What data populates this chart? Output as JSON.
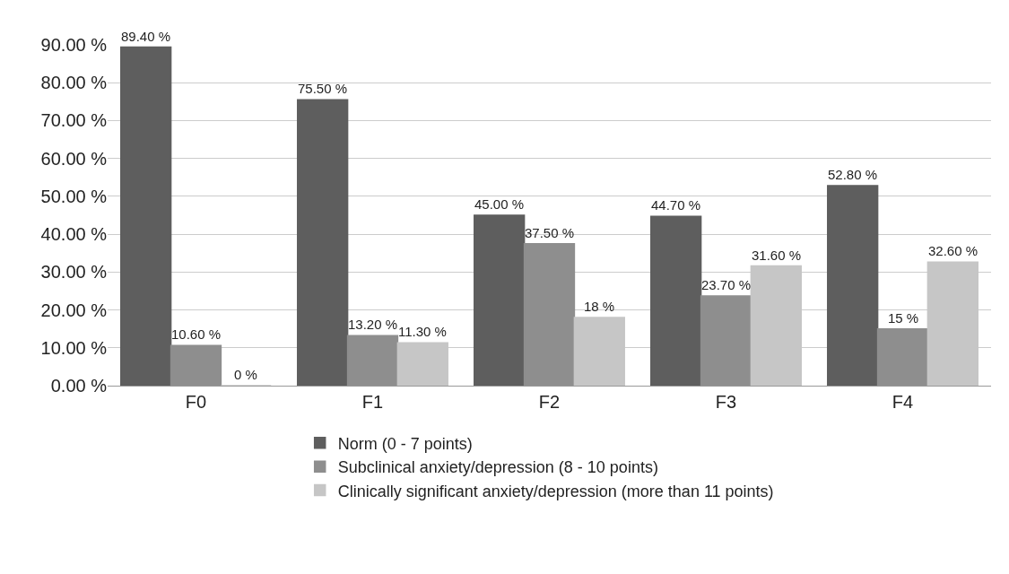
{
  "chart_data": {
    "type": "bar",
    "categories": [
      "F0",
      "F1",
      "F2",
      "F3",
      "F4"
    ],
    "series": [
      {
        "name": "Norm (0 - 7 points)",
        "color": "#5e5e5e",
        "values": [
          89.4,
          75.5,
          45.0,
          44.7,
          52.8
        ],
        "value_labels": [
          "89.40 %",
          "75.50 %",
          "45.00 %",
          "44.70 %",
          "52.80 %"
        ]
      },
      {
        "name": "Subclinical anxiety/depression (8 - 10 points)",
        "color": "#8e8e8e",
        "values": [
          10.6,
          13.2,
          37.5,
          23.7,
          15
        ],
        "value_labels": [
          "10.60 %",
          "13.20 %",
          "37.50 %",
          "23.70 %",
          "15 %"
        ]
      },
      {
        "name": "Clinically significant anxiety/depression (more than 11 points)",
        "color": "#c6c6c6",
        "values": [
          0,
          11.3,
          18,
          31.6,
          32.6
        ],
        "value_labels": [
          "0 %",
          "11.30 %",
          "18 %",
          "31.60 %",
          "32.60 %"
        ]
      }
    ],
    "ylim": [
      0,
      90
    ],
    "yticks": [
      {
        "value": 0,
        "label": "0.00 %"
      },
      {
        "value": 10,
        "label": "10.00 %"
      },
      {
        "value": 20,
        "label": "20.00 %"
      },
      {
        "value": 30,
        "label": "30.00 %"
      },
      {
        "value": 40,
        "label": "40.00 %"
      },
      {
        "value": 50,
        "label": "50.00 %"
      },
      {
        "value": 60,
        "label": "60.00 %"
      },
      {
        "value": 70,
        "label": "70.00 %"
      },
      {
        "value": 80,
        "label": "80.00 %"
      },
      {
        "value": 90,
        "label": "90.00 %"
      }
    ],
    "grid": "y",
    "legend": "bottom"
  }
}
